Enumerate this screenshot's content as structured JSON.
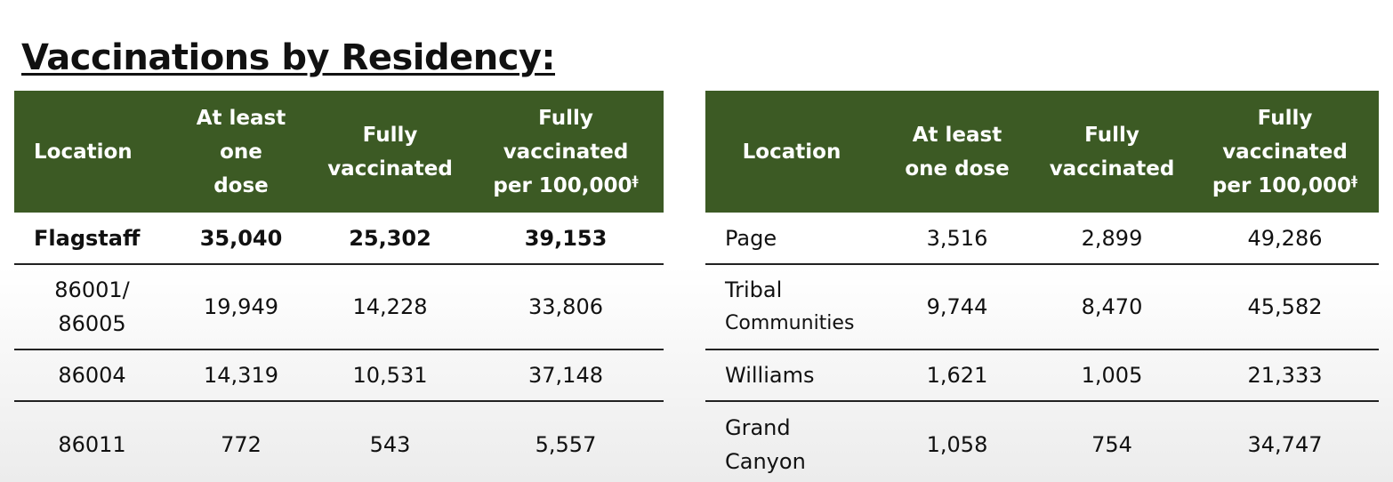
{
  "heading": "Vaccinations by Residency:",
  "columns": {
    "location": "Location",
    "one_dose_left": [
      "At least",
      "one",
      "dose"
    ],
    "one_dose_right": [
      "At least",
      "one dose"
    ],
    "fully": [
      "Fully",
      "vaccinated"
    ],
    "per100k": [
      "Fully",
      "vaccinated",
      "per 100,000"
    ],
    "per100k_mark": "ǂ"
  },
  "left_rows": [
    {
      "location": "Flagstaff",
      "one_dose": "35,040",
      "fully": "25,302",
      "per100k": "39,153"
    },
    {
      "location": [
        "86001/",
        "86005"
      ],
      "one_dose": "19,949",
      "fully": "14,228",
      "per100k": "33,806"
    },
    {
      "location": "86004",
      "one_dose": "14,319",
      "fully": "10,531",
      "per100k": "37,148"
    },
    {
      "location": "86011",
      "one_dose": "772",
      "fully": "543",
      "per100k": "5,557"
    }
  ],
  "right_rows": [
    {
      "location": "Page",
      "one_dose": "3,516",
      "fully": "2,899",
      "per100k": "49,286"
    },
    {
      "location": [
        "Tribal",
        "Communities"
      ],
      "one_dose": "9,744",
      "fully": "8,470",
      "per100k": "45,582"
    },
    {
      "location": "Williams",
      "one_dose": "1,621",
      "fully": "1,005",
      "per100k": "21,333"
    },
    {
      "location": [
        "Grand",
        "Canyon"
      ],
      "one_dose": "1,058",
      "fully": "754",
      "per100k": "34,747"
    }
  ],
  "colors": {
    "header_bg": "#3c5a24",
    "header_text": "#ffffff"
  }
}
